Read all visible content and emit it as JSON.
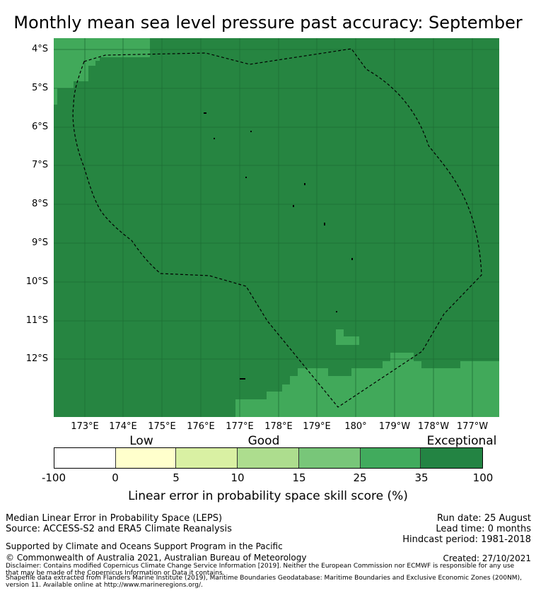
{
  "title": "Monthly mean sea level pressure past accuracy: September",
  "map": {
    "latitude_labels": [
      "4°S",
      "5°S",
      "6°S",
      "7°S",
      "8°S",
      "9°S",
      "10°S",
      "11°S",
      "12°S"
    ],
    "longitude_labels": [
      "173°E",
      "174°E",
      "175°E",
      "176°E",
      "177°E",
      "178°E",
      "179°E",
      "180°",
      "179°W",
      "178°W",
      "177°W"
    ],
    "colors": {
      "exceptional": "#268541",
      "very_good": "#41a95a",
      "boundary": "#000000",
      "gridline": "#1e6e35"
    }
  },
  "colorbar": {
    "category_labels": [
      "Low",
      "Good",
      "Exceptional"
    ],
    "tick_labels": [
      "-100",
      "0",
      "5",
      "10",
      "15",
      "25",
      "35",
      "100"
    ],
    "colors": [
      "#ffffff",
      "#ffffcc",
      "#d9f0a3",
      "#addd8e",
      "#78c679",
      "#41ab5d",
      "#238443"
    ],
    "title": "Linear error in probability space skill score (%)"
  },
  "info": {
    "metric": "Median Linear Error in Probability Space (LEPS)",
    "source": "Source: ACCESS-S2 and ERA5 Climate Reanalysis",
    "run_date": "Run date: 25 August",
    "lead_time": "Lead time: 0 months",
    "hindcast": "Hindcast period: 1981-2018",
    "support": "Supported by Climate and Oceans Support Program in the Pacific",
    "copyright": "© Commonwealth of Australia 2021, Australian Bureau of Meteorology",
    "created": "Created: 27/10/2021",
    "disclaimer_line1": "Disclaimer: Contains modified Copernicus Climate Change Service Information [2019]. Neither the European Commission nor ECMWF is responsible for any use",
    "disclaimer_line2": "that may be made of the Copernicus Information or Data it contains.",
    "shapefile_line1": "Shapefile data extracted from Flanders Marine Institute (2019), Maritime Boundaries Geodatabase: Maritime Boundaries and Exclusive Economic Zones (200NM),",
    "shapefile_line2": "version 11. Available online at http://www.marineregions.org/."
  }
}
